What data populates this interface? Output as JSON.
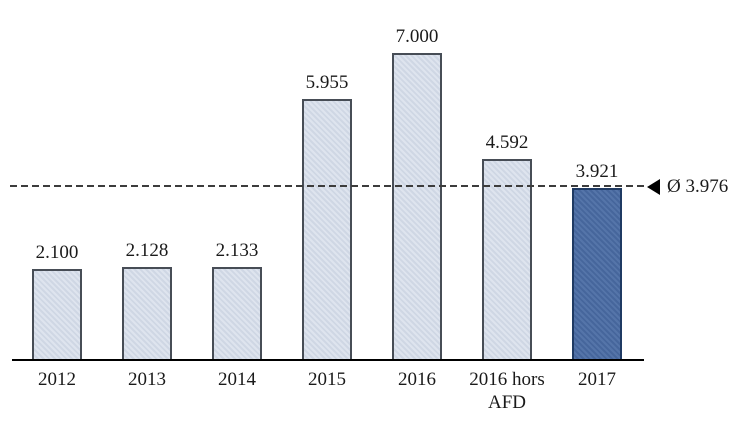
{
  "chart_data": {
    "type": "bar",
    "categories": [
      "2012",
      "2013",
      "2014",
      "2015",
      "2016",
      "2016 hors AFD",
      "2017"
    ],
    "values": [
      2100,
      2128,
      2133,
      5955,
      7000,
      4592,
      3921
    ],
    "value_labels": [
      "2.100",
      "2.128",
      "2.133",
      "5.955",
      "7.000",
      "4.592",
      "3.921"
    ],
    "title": "",
    "xlabel": "",
    "ylabel": "",
    "ylim": [
      0,
      7000
    ],
    "grid": false,
    "legend": "none",
    "highlight_index": 6,
    "average_line": {
      "value": 3976,
      "label": "Ø 3.976",
      "style": "dashed",
      "marker": "left-triangle-icon"
    },
    "colors": {
      "bar_default": "#d3dbe9",
      "bar_border_default": "#474d56",
      "bar_highlight": "#4a6ca4",
      "bar_border_highlight": "#1f3a63",
      "axis": "#000000",
      "dashed_line": "#3c3c3c",
      "text": "#1a1a1a",
      "background": "#ffffff"
    }
  }
}
